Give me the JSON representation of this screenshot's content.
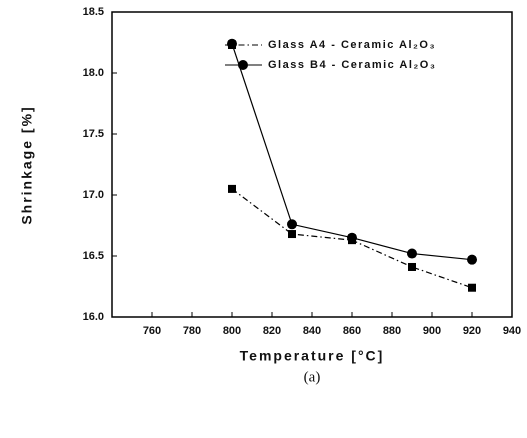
{
  "chart_data": {
    "type": "line",
    "caption": "(a)",
    "xlabel": "Temperature [°C]",
    "ylabel": "Shrinkage [%]",
    "x": [
      800,
      830,
      860,
      890,
      920
    ],
    "series": [
      {
        "name": "Glass A4 - Ceramic Al₂O₃",
        "color": "#000000",
        "marker": "square",
        "style": "dashdot",
        "values": [
          17.05,
          16.68,
          16.63,
          16.41,
          16.24
        ]
      },
      {
        "name": "Glass B4 - Ceramic Al₂O₃",
        "color": "#000000",
        "marker": "circle",
        "style": "solid",
        "values": [
          18.24,
          16.76,
          16.65,
          16.52,
          16.47
        ]
      }
    ],
    "xlim": [
      740,
      940
    ],
    "xticks": [
      760,
      780,
      800,
      820,
      840,
      860,
      880,
      900,
      920,
      940
    ],
    "ylim": [
      16,
      18.5
    ],
    "yticks": [
      {
        "value": 16,
        "label": "16.0"
      },
      16.5,
      {
        "value": 17,
        "label": "17.0"
      },
      17.5,
      {
        "value": 18,
        "label": "18.0"
      },
      18.5
    ],
    "legend": "upper right"
  }
}
